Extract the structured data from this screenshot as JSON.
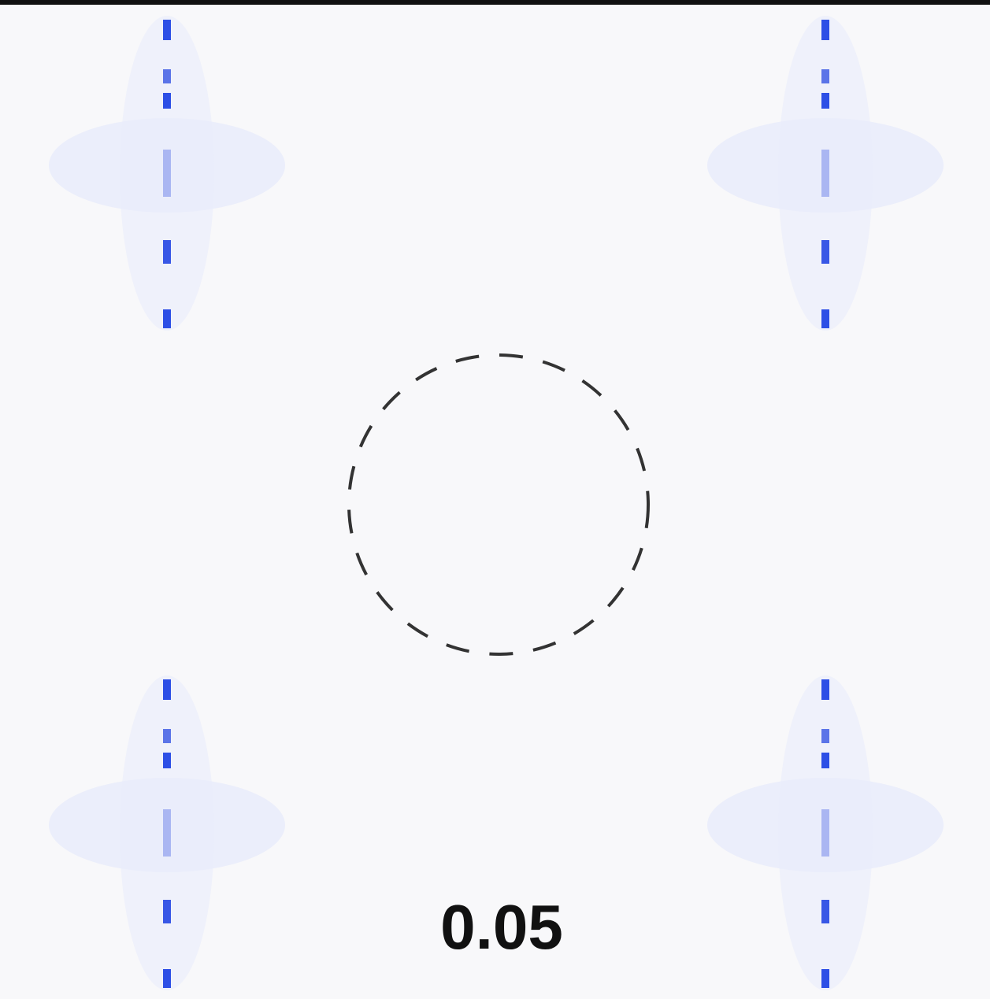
{
  "label": "0.05"
}
